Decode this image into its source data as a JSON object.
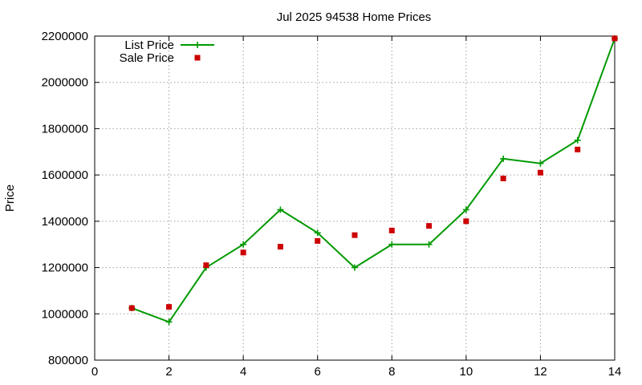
{
  "chart_data": {
    "type": "line",
    "title": "Jul 2025 94538 Home Prices",
    "xlabel": "",
    "ylabel": "Price",
    "xlim": [
      0,
      14
    ],
    "ylim": [
      800000,
      2200000
    ],
    "x_ticks": [
      0,
      2,
      4,
      6,
      8,
      10,
      12,
      14
    ],
    "y_ticks": [
      800000,
      1000000,
      1200000,
      1400000,
      1600000,
      1800000,
      2000000,
      2200000
    ],
    "grid": true,
    "legend_position": "top-left",
    "series": [
      {
        "name": "List Price",
        "style": "line-plus",
        "color": "#009900",
        "x": [
          1,
          2,
          3,
          4,
          5,
          6,
          7,
          8,
          9,
          10,
          11,
          12,
          13,
          14
        ],
        "values": [
          1025000,
          965000,
          1200000,
          1300000,
          1450000,
          1350000,
          1200000,
          1300000,
          1300000,
          1450000,
          1670000,
          1650000,
          1750000,
          2190000
        ]
      },
      {
        "name": "Sale Price",
        "style": "square",
        "color": "#cc0000",
        "x": [
          1,
          2,
          3,
          4,
          5,
          6,
          7,
          8,
          9,
          10,
          11,
          12,
          13,
          14
        ],
        "values": [
          1025000,
          1030000,
          1210000,
          1265000,
          1290000,
          1315000,
          1340000,
          1360000,
          1380000,
          1400000,
          1585000,
          1610000,
          1710000,
          2190000
        ]
      }
    ]
  }
}
